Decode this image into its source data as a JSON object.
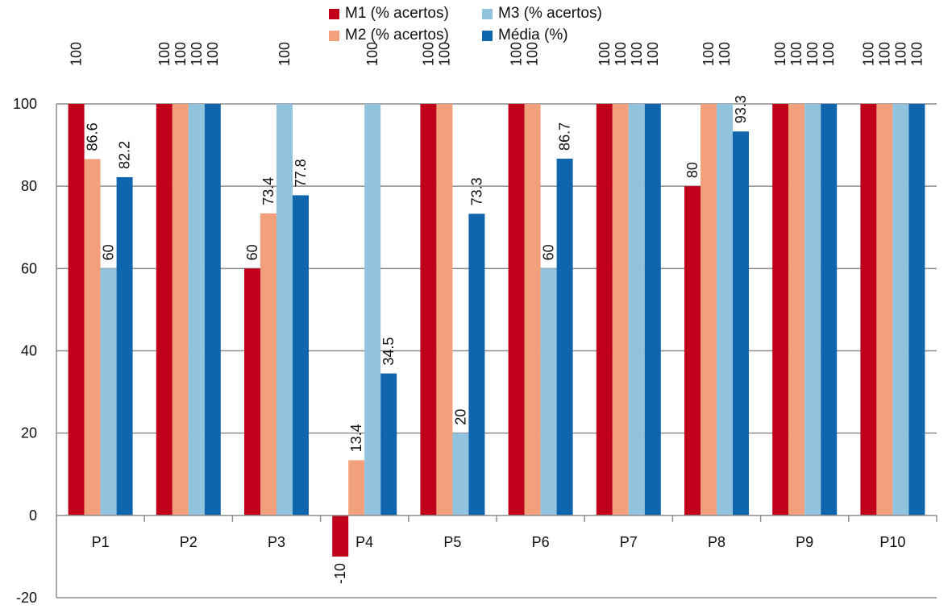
{
  "chart_data": {
    "type": "bar",
    "title": "",
    "xlabel": "",
    "ylabel": "",
    "categories": [
      "P1",
      "P2",
      "P3",
      "P4",
      "P5",
      "P6",
      "P7",
      "P8",
      "P9",
      "P10"
    ],
    "series": [
      {
        "name": "M1 (% acertos)",
        "color": "#C0001A",
        "values": [
          100,
          100,
          60,
          -10,
          100,
          100,
          100,
          80,
          100,
          100
        ]
      },
      {
        "name": "M2 (% acertos)",
        "color": "#F2A07C",
        "values": [
          86.6,
          100,
          73.4,
          13.4,
          100,
          100,
          100,
          100,
          100,
          100
        ]
      },
      {
        "name": "M3 (% acertos)",
        "color": "#92C3DE",
        "values": [
          60,
          100,
          100,
          100,
          20,
          60,
          100,
          100,
          100,
          100
        ]
      },
      {
        "name": "Média (%)",
        "color": "#1066AC",
        "values": [
          82.2,
          100,
          77.8,
          34.5,
          73.3,
          86.7,
          100,
          93.3,
          100,
          100
        ]
      }
    ],
    "data_labels": [
      [
        "100",
        "86.6",
        "60",
        "82.2"
      ],
      [
        "100",
        "100",
        "100",
        "100"
      ],
      [
        "60",
        "73.4",
        "100",
        "77.8"
      ],
      [
        "-10",
        "13.4",
        "100",
        "34.5"
      ],
      [
        "100",
        "100",
        "20",
        "73.3"
      ],
      [
        "100",
        "100",
        "60",
        "86.7"
      ],
      [
        "100",
        "100",
        "100",
        "100"
      ],
      [
        "80",
        "100",
        "100",
        "93.3"
      ],
      [
        "100",
        "100",
        "100",
        "100"
      ],
      [
        "100",
        "100",
        "100",
        "100"
      ]
    ],
    "ylim": [
      -20,
      100
    ],
    "yticks": [
      -20,
      0,
      20,
      40,
      60,
      80,
      100
    ],
    "grid": true,
    "legend": "top-center"
  }
}
